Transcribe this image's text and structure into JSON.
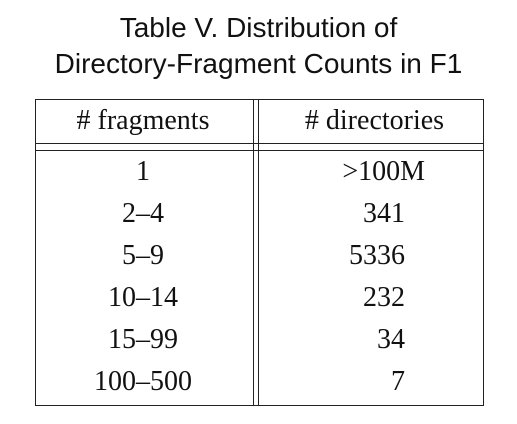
{
  "title": {
    "line1": "Table V. Distribution of",
    "line2": "Directory-Fragment Counts in F1"
  },
  "table": {
    "headers": [
      "# fragments",
      "# directories"
    ],
    "rows": [
      {
        "fragments": "1",
        "directories": ">100M"
      },
      {
        "fragments": "2–4",
        "directories": "341"
      },
      {
        "fragments": "5–9",
        "directories": "5336"
      },
      {
        "fragments": "10–14",
        "directories": "232"
      },
      {
        "fragments": "15–99",
        "directories": "34"
      },
      {
        "fragments": "100–500",
        "directories": "7"
      }
    ]
  }
}
